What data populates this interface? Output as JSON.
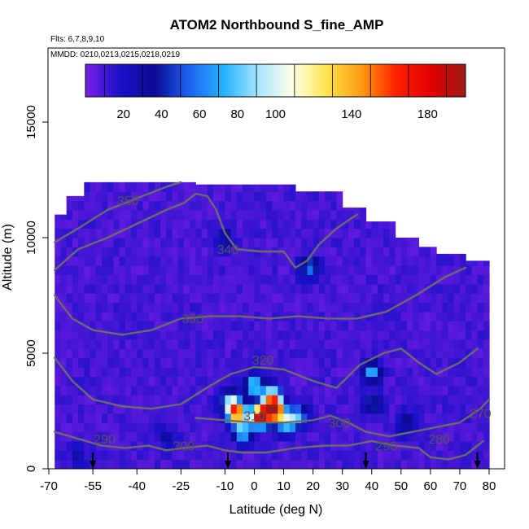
{
  "chart_data": {
    "type": "heatmap",
    "title": "ATOM2 Northbound S_fine_AMP",
    "flights_note": "Flts: 6,7,8,9,10",
    "dates_note": "MMDD: 0210,0213,0215,0218,0219",
    "xlabel": "Latitude (deg N)",
    "ylabel": "Altitude (m)",
    "xlim": [
      -70,
      82
    ],
    "ylim": [
      0,
      17500
    ],
    "x_ticks": [
      -70,
      -55,
      -40,
      -25,
      -10,
      0,
      10,
      20,
      30,
      40,
      50,
      60,
      70,
      80
    ],
    "x_tick_labels": [
      "-70",
      "-55",
      "-40",
      "-25",
      "-10",
      "0",
      "10",
      "20",
      "30",
      "40",
      "50",
      "60",
      "70",
      "80"
    ],
    "y_ticks": [
      0,
      5000,
      10000,
      15000
    ],
    "y_tick_labels": [
      "0",
      "5000",
      "10000",
      "15000"
    ],
    "colorbar": {
      "range": [
        0,
        200
      ],
      "tick_values": [
        20,
        40,
        60,
        80,
        100,
        140,
        180
      ],
      "tick_labels": [
        "20",
        "40",
        "60",
        "80",
        "100",
        "140",
        "180"
      ],
      "stops": [
        "#7a1fe6",
        "#1a10c8",
        "#0a0a95",
        "#1e62f0",
        "#22b4ff",
        "#a8e4ff",
        "#ffffe6",
        "#ffe44a",
        "#ff9a10",
        "#ff2000",
        "#e00000",
        "#9e1a1a"
      ]
    },
    "contour_labels": [
      {
        "text": "350",
        "lat": -43,
        "alt": 11400
      },
      {
        "text": "340",
        "lat": -9,
        "alt": 9300
      },
      {
        "text": "330",
        "lat": -21,
        "alt": 6300
      },
      {
        "text": "320",
        "lat": 3,
        "alt": 4500
      },
      {
        "text": "310",
        "lat": 0,
        "alt": 2100
      },
      {
        "text": "300",
        "lat": 29,
        "alt": 1800
      },
      {
        "text": "300",
        "lat": -24,
        "alt": 800
      },
      {
        "text": "290",
        "lat": -51,
        "alt": 1100
      },
      {
        "text": "290",
        "lat": 45,
        "alt": 800
      },
      {
        "text": "280",
        "lat": 63,
        "alt": 1100
      },
      {
        "text": "270",
        "lat": 77,
        "alt": 2200
      }
    ],
    "flight_markers_lat": [
      -55,
      -9,
      38,
      76
    ],
    "background_value": 5,
    "hotspots": [
      {
        "lat": 2,
        "alt": 2300,
        "value": 185
      },
      {
        "lat": 7,
        "alt": 2500,
        "value": 170
      },
      {
        "lat": -6,
        "alt": 2400,
        "value": 150
      },
      {
        "lat": 6,
        "alt": 3100,
        "value": 120
      },
      {
        "lat": 0,
        "alt": 3600,
        "value": 80
      },
      {
        "lat": -8,
        "alt": 2900,
        "value": 75
      },
      {
        "lat": 11,
        "alt": 2000,
        "value": 70
      },
      {
        "lat": -4,
        "alt": 1600,
        "value": 70
      },
      {
        "lat": 15,
        "alt": 2300,
        "value": 60
      },
      {
        "lat": 40,
        "alt": 4200,
        "value": 60
      },
      {
        "lat": 40,
        "alt": 2800,
        "value": 35
      },
      {
        "lat": 19,
        "alt": 8700,
        "value": 50
      },
      {
        "lat": -10,
        "alt": 10000,
        "value": 25
      },
      {
        "lat": 52,
        "alt": 2000,
        "value": 30
      },
      {
        "lat": -30,
        "alt": 1400,
        "value": 20
      },
      {
        "lat": -60,
        "alt": 600,
        "value": 18
      }
    ]
  }
}
